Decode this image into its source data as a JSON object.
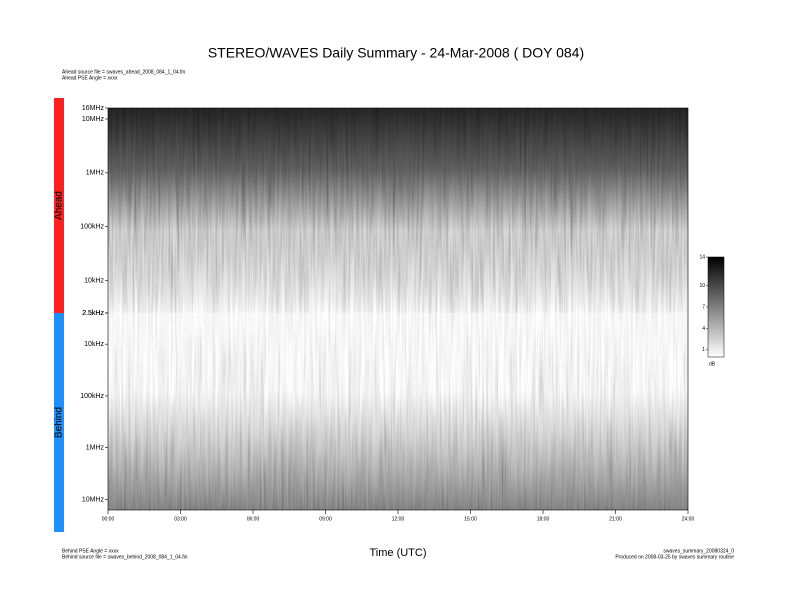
{
  "chart_data": {
    "type": "spectrogram",
    "title": "STEREO/WAVES Daily Summary - 24-Mar-2008 ( DOY 084)",
    "notes_top": [
      "Ahead source file = swaves_ahead_2008_084_1_04.fin",
      "Ahead PSE Angle = xxxx"
    ],
    "notes_bottom_left": [
      "Behind PSE Angle = xxxx",
      "Behind source file = swaves_behind_2008_084_1_04.fin"
    ],
    "notes_bottom_right": [
      "swaves_summary_20080324_0",
      "Produced on 2008-03-25 by swaves summary routine"
    ],
    "xlabel": "Time (UTC)",
    "xlim": [
      0,
      24
    ],
    "xticks": [
      {
        "value": 0,
        "label": "00:00"
      },
      {
        "value": 3,
        "label": "03:00"
      },
      {
        "value": 6,
        "label": "06:00"
      },
      {
        "value": 9,
        "label": "09:00"
      },
      {
        "value": 12,
        "label": "12:00"
      },
      {
        "value": 15,
        "label": "15:00"
      },
      {
        "value": 18,
        "label": "18:00"
      },
      {
        "value": 21,
        "label": "21:00"
      },
      {
        "value": 24,
        "label": "24:00"
      }
    ],
    "panels": [
      {
        "name": "Ahead",
        "color": "#ff2020",
        "log_y": true,
        "ylim": [
          2500,
          16000000
        ],
        "yticks": [
          {
            "value": 2500,
            "label": "2.5kHz"
          },
          {
            "value": 10000,
            "label": "10kHz"
          },
          {
            "value": 100000,
            "label": "100kHz"
          },
          {
            "value": 1000000,
            "label": "1MHz"
          },
          {
            "value": 10000000,
            "label": "10MHz"
          },
          {
            "value": 16000000,
            "label": "16MHz"
          }
        ]
      },
      {
        "name": "Behind",
        "color": "#1e90ff",
        "log_y": true,
        "ylim": [
          16000000,
          2500
        ],
        "yticks": [
          {
            "value": 10000000,
            "label": "10MHz"
          },
          {
            "value": 1000000,
            "label": "1MHz"
          },
          {
            "value": 100000,
            "label": "100kHz"
          },
          {
            "value": 10000,
            "label": "10kHz"
          },
          {
            "value": 2500,
            "label": "2.5kHz"
          }
        ]
      }
    ],
    "colorbar": {
      "label": "dB",
      "lim": [
        0,
        14
      ],
      "ticks": [
        1,
        4,
        7,
        10,
        14
      ]
    }
  }
}
